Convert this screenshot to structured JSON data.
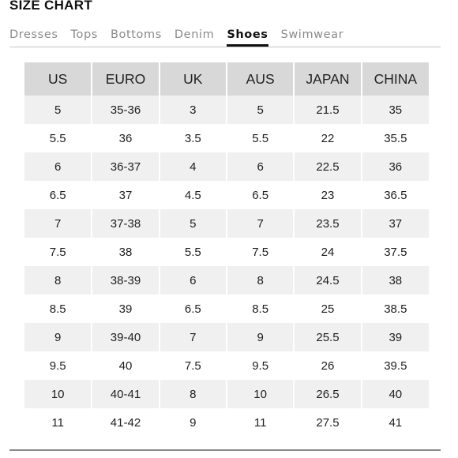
{
  "title": "SIZE CHART",
  "tabs": [
    {
      "label": "Dresses",
      "active": false
    },
    {
      "label": "Tops",
      "active": false
    },
    {
      "label": "Bottoms",
      "active": false
    },
    {
      "label": "Denim",
      "active": false
    },
    {
      "label": "Shoes",
      "active": true
    },
    {
      "label": "Swimwear",
      "active": false
    }
  ],
  "table": {
    "headers": [
      "US",
      "EURO",
      "UK",
      "AUS",
      "JAPAN",
      "CHINA"
    ],
    "rows": [
      [
        "5",
        "35-36",
        "3",
        "5",
        "21.5",
        "35"
      ],
      [
        "5.5",
        "36",
        "3.5",
        "5.5",
        "22",
        "35.5"
      ],
      [
        "6",
        "36-37",
        "4",
        "6",
        "22.5",
        "36"
      ],
      [
        "6.5",
        "37",
        "4.5",
        "6.5",
        "23",
        "36.5"
      ],
      [
        "7",
        "37-38",
        "5",
        "7",
        "23.5",
        "37"
      ],
      [
        "7.5",
        "38",
        "5.5",
        "7.5",
        "24",
        "37.5"
      ],
      [
        "8",
        "38-39",
        "6",
        "8",
        "24.5",
        "38"
      ],
      [
        "8.5",
        "39",
        "6.5",
        "8.5",
        "25",
        "38.5"
      ],
      [
        "9",
        "39-40",
        "7",
        "9",
        "25.5",
        "39"
      ],
      [
        "9.5",
        "40",
        "7.5",
        "9.5",
        "26",
        "39.5"
      ],
      [
        "10",
        "40-41",
        "8",
        "10",
        "26.5",
        "40"
      ],
      [
        "11",
        "41-42",
        "9",
        "11",
        "27.5",
        "41"
      ]
    ]
  }
}
